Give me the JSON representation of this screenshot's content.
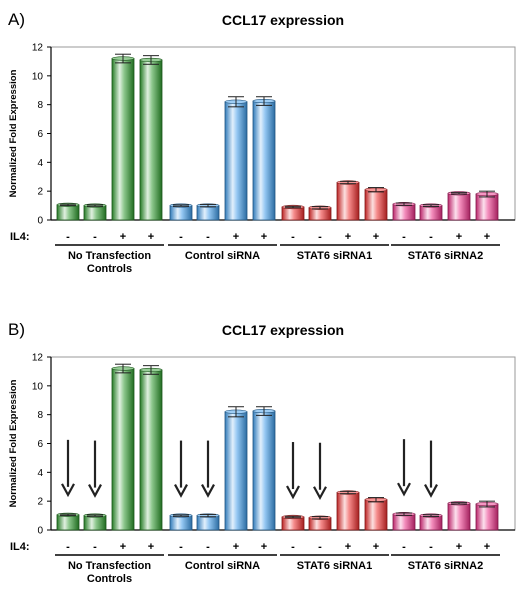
{
  "chart_data": [
    {
      "panel_label": "A)",
      "type": "bar",
      "title": "CCL17 expression",
      "ylabel": "Normalized Fold Expression",
      "ylim": [
        0,
        12
      ],
      "yticks": [
        0,
        2,
        4,
        6,
        8,
        10,
        12
      ],
      "grid": false,
      "legend": "none",
      "il4_label": "IL4:",
      "groups": [
        {
          "name": "No Transfection Controls",
          "name_lines": [
            "No Transfection",
            "Controls"
          ],
          "color": "#2e9a2e",
          "bars": [
            {
              "il4": "-",
              "value": 1.05,
              "err": 0.05
            },
            {
              "il4": "-",
              "value": 1.0,
              "err": 0.05
            },
            {
              "il4": "+",
              "value": 11.2,
              "err": 0.3
            },
            {
              "il4": "+",
              "value": 11.1,
              "err": 0.3
            }
          ]
        },
        {
          "name": "Control siRNA",
          "name_lines": [
            "Control siRNA"
          ],
          "color": "#3d9ae8",
          "bars": [
            {
              "il4": "-",
              "value": 1.0,
              "err": 0.05
            },
            {
              "il4": "-",
              "value": 1.0,
              "err": 0.08
            },
            {
              "il4": "+",
              "value": 8.2,
              "err": 0.35
            },
            {
              "il4": "+",
              "value": 8.25,
              "err": 0.3
            }
          ]
        },
        {
          "name": "STAT6 siRNA1",
          "name_lines": [
            "STAT6 siRNA1"
          ],
          "color": "#ec2c2c",
          "bars": [
            {
              "il4": "-",
              "value": 0.9,
              "err": 0.05
            },
            {
              "il4": "-",
              "value": 0.85,
              "err": 0.08
            },
            {
              "il4": "+",
              "value": 2.6,
              "err": 0.08
            },
            {
              "il4": "+",
              "value": 2.1,
              "err": 0.15
            }
          ]
        },
        {
          "name": "STAT6 siRNA2",
          "name_lines": [
            "STAT6 siRNA2"
          ],
          "color": "#ea2f86",
          "bars": [
            {
              "il4": "-",
              "value": 1.1,
              "err": 0.08
            },
            {
              "il4": "-",
              "value": 1.0,
              "err": 0.06
            },
            {
              "il4": "+",
              "value": 1.85,
              "err": 0.05
            },
            {
              "il4": "+",
              "value": 1.8,
              "err": 0.2
            }
          ]
        }
      ]
    },
    {
      "panel_label": "B)",
      "type": "bar",
      "title": "CCL17 expression",
      "ylabel": "Normalized Fold Expression",
      "ylim": [
        0,
        12
      ],
      "yticks": [
        0,
        2,
        4,
        6,
        8,
        10,
        12
      ],
      "grid": false,
      "legend": "none",
      "il4_label": "IL4:",
      "annotations": "downward arrows above each IL4 '-' bar",
      "groups": [
        {
          "name": "No Transfection Controls",
          "name_lines": [
            "No Transfection",
            "Controls"
          ],
          "color": "#2e9a2e",
          "bars": [
            {
              "il4": "-",
              "value": 1.05,
              "err": 0.05
            },
            {
              "il4": "-",
              "value": 1.0,
              "err": 0.05
            },
            {
              "il4": "+",
              "value": 11.2,
              "err": 0.3
            },
            {
              "il4": "+",
              "value": 11.1,
              "err": 0.3
            }
          ]
        },
        {
          "name": "Control siRNA",
          "name_lines": [
            "Control siRNA"
          ],
          "color": "#3d9ae8",
          "bars": [
            {
              "il4": "-",
              "value": 1.0,
              "err": 0.05
            },
            {
              "il4": "-",
              "value": 1.0,
              "err": 0.08
            },
            {
              "il4": "+",
              "value": 8.2,
              "err": 0.35
            },
            {
              "il4": "+",
              "value": 8.25,
              "err": 0.3
            }
          ]
        },
        {
          "name": "STAT6 siRNA1",
          "name_lines": [
            "STAT6 siRNA1"
          ],
          "color": "#ec2c2c",
          "bars": [
            {
              "il4": "-",
              "value": 0.9,
              "err": 0.05
            },
            {
              "il4": "-",
              "value": 0.85,
              "err": 0.08
            },
            {
              "il4": "+",
              "value": 2.6,
              "err": 0.08
            },
            {
              "il4": "+",
              "value": 2.1,
              "err": 0.15
            }
          ]
        },
        {
          "name": "STAT6 siRNA2",
          "name_lines": [
            "STAT6 siRNA2"
          ],
          "color": "#ea2f86",
          "bars": [
            {
              "il4": "-",
              "value": 1.1,
              "err": 0.08
            },
            {
              "il4": "-",
              "value": 1.0,
              "err": 0.06
            },
            {
              "il4": "+",
              "value": 1.85,
              "err": 0.05
            },
            {
              "il4": "+",
              "value": 1.8,
              "err": 0.2
            }
          ]
        }
      ]
    }
  ]
}
